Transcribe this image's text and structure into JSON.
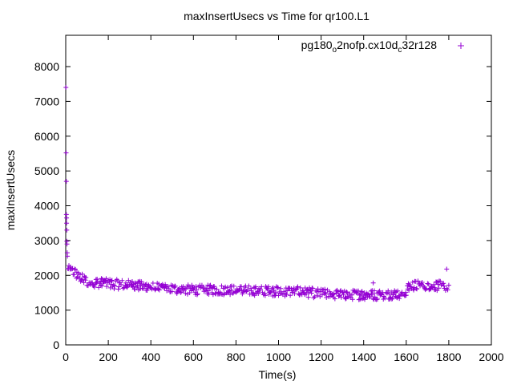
{
  "chart_data": {
    "type": "scatter",
    "title": "maxInsertUsecs vs Time for qr100.L1",
    "xlabel": "Time(s)",
    "ylabel": "maxInsertUsecs",
    "xlim": [
      0,
      2000
    ],
    "ylim": [
      0,
      8900
    ],
    "x_ticks": [
      "0",
      "200",
      "400",
      "600",
      "800",
      "1000",
      "1200",
      "1400",
      "1600",
      "1800",
      "2000"
    ],
    "y_ticks": [
      "0",
      "1000",
      "2000",
      "3000",
      "4000",
      "5000",
      "6000",
      "7000",
      "8000"
    ],
    "grid": false,
    "legend_position": "top-right",
    "marker": "+",
    "series": [
      {
        "legend_parts": [
          "pg180",
          "o",
          "2nofp.cx10d",
          "c",
          "32r128"
        ],
        "color": "#9400d3",
        "spikes": [
          {
            "x": 1,
            "y": 7400
          },
          {
            "x": 2,
            "y": 5520
          },
          {
            "x": 3,
            "y": 4700
          },
          {
            "x": 3,
            "y": 3750
          },
          {
            "x": 4,
            "y": 3650
          },
          {
            "x": 4,
            "y": 3500
          },
          {
            "x": 5,
            "y": 3300
          },
          {
            "x": 5,
            "y": 2980
          },
          {
            "x": 6,
            "y": 2900
          },
          {
            "x": 7,
            "y": 2650
          },
          {
            "x": 8,
            "y": 2550
          },
          {
            "x": 1445,
            "y": 1780
          },
          {
            "x": 1790,
            "y": 2180
          }
        ],
        "trend": [
          [
            10,
            2150
          ],
          [
            40,
            2100
          ],
          [
            60,
            1950
          ],
          [
            100,
            1820
          ],
          [
            200,
            1760
          ],
          [
            300,
            1720
          ],
          [
            400,
            1660
          ],
          [
            500,
            1600
          ],
          [
            600,
            1580
          ],
          [
            700,
            1580
          ],
          [
            800,
            1570
          ],
          [
            900,
            1560
          ],
          [
            1000,
            1540
          ],
          [
            1100,
            1530
          ],
          [
            1200,
            1470
          ],
          [
            1300,
            1440
          ],
          [
            1400,
            1440
          ],
          [
            1500,
            1440
          ],
          [
            1590,
            1480
          ],
          [
            1620,
            1700
          ],
          [
            1700,
            1720
          ],
          [
            1800,
            1680
          ]
        ],
        "spread": 140,
        "sample_interval_s": 5
      }
    ]
  }
}
